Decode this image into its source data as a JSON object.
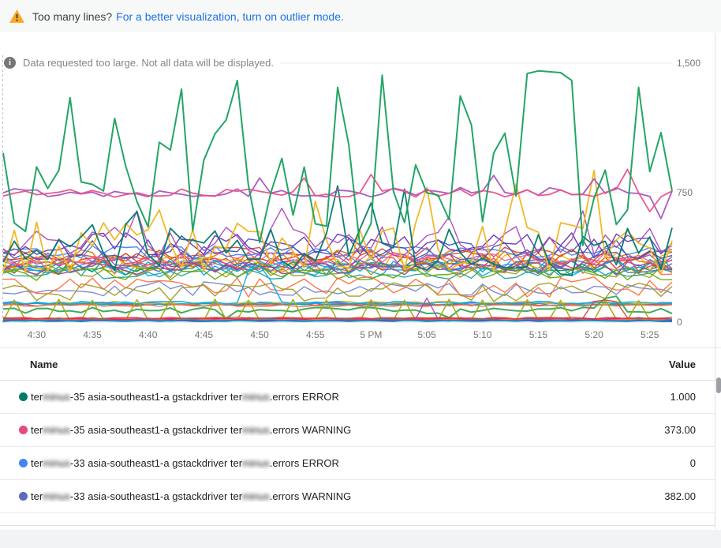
{
  "banner": {
    "question": "Too many lines?",
    "link": "For a better visualization, turn on outlier mode."
  },
  "notice": {
    "text": "Data requested too large. Not all data will be displayed."
  },
  "colors": {
    "link": "#1a73e8",
    "warning_icon": "#F9A825",
    "grid": "#ececec",
    "axis_text": "#757575"
  },
  "chart": {
    "type": "line",
    "ylim": [
      0,
      1500
    ],
    "points": 61,
    "y_gridlines": [
      {
        "value": 1500,
        "label": "1,500"
      },
      {
        "value": 750,
        "label": "750"
      },
      {
        "value": 0,
        "label": "0"
      }
    ],
    "x_ticks": [
      {
        "label": "4:30",
        "i": 3
      },
      {
        "label": "4:35",
        "i": 8
      },
      {
        "label": "4:40",
        "i": 13
      },
      {
        "label": "4:45",
        "i": 18
      },
      {
        "label": "4:50",
        "i": 23
      },
      {
        "label": "4:55",
        "i": 28
      },
      {
        "label": "5 PM",
        "i": 33
      },
      {
        "label": "5:05",
        "i": 38
      },
      {
        "label": "5:10",
        "i": 43
      },
      {
        "label": "5:15",
        "i": 48
      },
      {
        "label": "5:20",
        "i": 53
      },
      {
        "label": "5:25",
        "i": 58
      }
    ],
    "series": [
      {
        "c": "#dc3912",
        "b": 360,
        "a": 55,
        "sd": 11
      },
      {
        "c": "#ff7043",
        "b": 330,
        "a": 55,
        "sd": 12
      },
      {
        "c": "#4285f4",
        "b": 345,
        "a": 50,
        "sd": 13
      },
      {
        "c": "#03a9f4",
        "b": 312,
        "a": 45,
        "sd": 14
      },
      {
        "c": "#00acc1",
        "b": 330,
        "a": 40,
        "sd": 15
      },
      {
        "c": "#0f9d58",
        "b": 320,
        "a": 45,
        "sd": 16
      },
      {
        "c": "#f4b400",
        "b": 350,
        "a": 60,
        "sd": 17
      },
      {
        "c": "#9e9d24",
        "b": 300,
        "a": 50,
        "sd": 18
      },
      {
        "c": "#ec407a",
        "b": 340,
        "a": 45,
        "sd": 19
      },
      {
        "c": "#7e57c2",
        "b": 358,
        "a": 50,
        "sd": 20
      },
      {
        "c": "#5c6bc0",
        "b": 330,
        "a": 45,
        "sd": 21
      },
      {
        "c": "#26a69a",
        "b": 290,
        "a": 40,
        "sd": 22
      },
      {
        "c": "#e67300",
        "b": 368,
        "a": 55,
        "sd": 23
      },
      {
        "c": "#994499",
        "b": 310,
        "a": 40,
        "sd": 24
      },
      {
        "c": "#db4437",
        "b": 395,
        "a": 45,
        "sd": 25
      },
      {
        "c": "#66aa00",
        "b": 282,
        "a": 40,
        "sd": 26
      },
      {
        "c": "#f06292",
        "b": 375,
        "a": 40,
        "sd": 27
      },
      {
        "c": "#4285f4",
        "b": 405,
        "a": 40,
        "sd": 28
      },
      {
        "c": "#7986cb",
        "b": 195,
        "a": 45,
        "sd": 29
      },
      {
        "c": "#ff7043",
        "b": 205,
        "a": 60,
        "sd": 30
      },
      {
        "c": "#9e9d24",
        "b": 175,
        "a": 55,
        "sd": 31
      },
      {
        "c": "#4285f4",
        "b": 108,
        "a": 8,
        "sd": 32,
        "w": 2
      },
      {
        "c": "#db4437",
        "b": 100,
        "a": 7,
        "sd": 33
      },
      {
        "c": "#f4b400",
        "b": 113,
        "a": 8,
        "sd": 34
      },
      {
        "c": "#00acc1",
        "b": 104,
        "a": 6,
        "sd": 35
      },
      {
        "c": "#ff7043",
        "b": 96,
        "a": 6,
        "sd": 36
      },
      {
        "c": "#03a9f4",
        "b": 112,
        "a": 9,
        "sd": 37,
        "s": {
          "22": 295,
          "23": 330,
          "24": 240
        }
      },
      {
        "c": "#34a853",
        "b": 68,
        "a": 18,
        "sd": 38,
        "w": 2,
        "s": {
          "20": 22,
          "40": 26,
          "54": 138,
          "55": 150,
          "56": 60
        }
      },
      {
        "c": "#aaaa11",
        "b": 12,
        "a": 5,
        "sd": 39,
        "w": 1.6,
        "s": {
          "1": 128,
          "5": 132,
          "8": 126,
          "12": 130,
          "15": 128,
          "19": 133,
          "22": 126,
          "26": 131,
          "29": 128,
          "33": 130,
          "36": 127,
          "40": 132,
          "43": 128,
          "47": 130,
          "50": 126,
          "54": 131,
          "57": 125
        }
      },
      {
        "c": "#ab47bc",
        "b": 16,
        "a": 3,
        "sd": 40,
        "s": {
          "38": 140
        }
      },
      {
        "c": "#4285f4",
        "b": 18,
        "a": 5,
        "sd": 41,
        "w": 2
      },
      {
        "c": "#9c27b0",
        "b": 14,
        "a": 4,
        "sd": 42
      },
      {
        "c": "#db4437",
        "b": 22,
        "a": 5,
        "sd": 43
      },
      {
        "c": "#00796b",
        "b": 10,
        "a": 4,
        "sd": 44
      },
      {
        "c": "#ff7043",
        "b": 16,
        "a": 4,
        "sd": 45
      },
      {
        "c": "#3f51b5",
        "b": 8,
        "a": 3,
        "sd": 46,
        "w": 2
      },
      {
        "c": "#e91e63",
        "b": 20,
        "a": 4,
        "sd": 47
      },
      {
        "c": "#00acc1",
        "b": 12,
        "a": 4,
        "sd": 48
      },
      {
        "c": "#db4437",
        "b": 24,
        "a": 5,
        "sd": 49,
        "s": {
          "53": 120,
          "54": 128,
          "55": 118
        }
      },
      {
        "c": "#3f51b5",
        "b": 420,
        "a": 65,
        "sd": 50
      },
      {
        "c": "#5e35b1",
        "b": 450,
        "a": 70,
        "sd": 51
      },
      {
        "c": "#ab47bc",
        "b": 470,
        "a": 85,
        "sd": 52,
        "s": {
          "12": 645,
          "25": 660,
          "40": 610,
          "52": 645
        }
      },
      {
        "c": "#f2b41e",
        "b": 430,
        "a": 160,
        "sd": 53,
        "w": 1.8,
        "s": {
          "14": 650,
          "28": 700,
          "38": 780,
          "46": 800,
          "53": 880
        }
      },
      {
        "c": "#00796b",
        "b": 420,
        "a": 150,
        "sd": 54,
        "w": 1.8,
        "s": {
          "12": 640,
          "30": 790,
          "33": 690,
          "36": 770
        }
      },
      {
        "c": "#a853c0",
        "b": 752,
        "a": 28,
        "sd": 55,
        "w": 1.8,
        "s": {
          "23": 835,
          "44": 850,
          "53": 830,
          "59": 600
        }
      },
      {
        "c": "#e8538a",
        "b": 748,
        "a": 25,
        "sd": 56,
        "w": 1.8,
        "s": {
          "27": 835,
          "33": 855,
          "56": 885,
          "58": 640
        }
      },
      {
        "c": "#18a05f",
        "b": 800,
        "a": 380,
        "mn": 430,
        "sd": 57,
        "w": 2,
        "s": {
          "6": 1300,
          "10": 1180,
          "16": 1350,
          "21": 1400,
          "26": 620,
          "30": 1360,
          "34": 1430,
          "41": 1310,
          "44": 980,
          "47": 1440,
          "48": 1455,
          "49": 1450,
          "50": 1445,
          "51": 1400,
          "53": 720,
          "57": 1360
        }
      }
    ]
  },
  "legend": {
    "columns": [
      {
        "label": "Name"
      },
      {
        "label": "Value"
      }
    ],
    "rows": [
      {
        "dot_color": "#00796b",
        "name_parts": [
          {
            "t": "ter"
          },
          {
            "t": "minus",
            "blur": true
          },
          {
            "t": "-35 asia-southeast1-a gstackdriver ter"
          },
          {
            "t": "minus",
            "blur": true
          },
          {
            "t": ".errors ERROR"
          }
        ],
        "value": "1.000"
      },
      {
        "dot_color": "#e8497f",
        "name_parts": [
          {
            "t": "ter"
          },
          {
            "t": "minus",
            "blur": true
          },
          {
            "t": "-35 asia-southeast1-a gstackdriver ter"
          },
          {
            "t": "minus",
            "blur": true
          },
          {
            "t": ".errors WARNING"
          }
        ],
        "value": "373.00"
      },
      {
        "dot_color": "#4285f4",
        "name_parts": [
          {
            "t": "ter"
          },
          {
            "t": "minus",
            "blur": true
          },
          {
            "t": "-33 asia-southeast1-a gstackdriver ter"
          },
          {
            "t": "minus",
            "blur": true
          },
          {
            "t": ".errors ERROR"
          }
        ],
        "value": "0"
      },
      {
        "dot_color": "#5c6bc0",
        "name_parts": [
          {
            "t": "ter"
          },
          {
            "t": "minus",
            "blur": true
          },
          {
            "t": "-33 asia-southeast1-a gstackdriver ter"
          },
          {
            "t": "minus",
            "blur": true
          },
          {
            "t": ".errors WARNING"
          }
        ],
        "value": "382.00"
      }
    ]
  }
}
